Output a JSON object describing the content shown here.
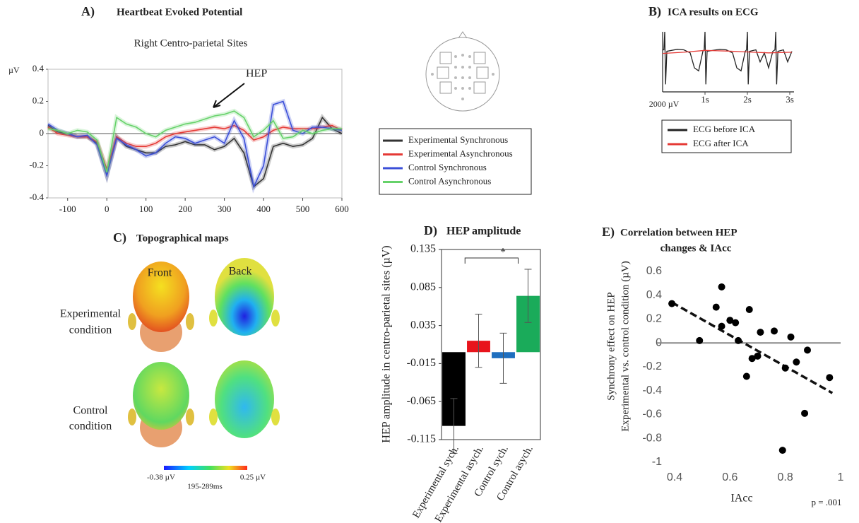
{
  "chart_data": [
    {
      "type": "line",
      "label": "A)",
      "title": "Heartbeat Evoked Potential",
      "subtitle": "Right Centro-parietal Sites",
      "y_unit": "µV",
      "annotation": "HEP",
      "x": [
        -150,
        -125,
        -100,
        -75,
        -50,
        -25,
        0,
        25,
        50,
        75,
        100,
        125,
        150,
        175,
        200,
        225,
        250,
        275,
        300,
        325,
        350,
        375,
        400,
        425,
        450,
        475,
        500,
        525,
        550,
        575,
        600
      ],
      "xlim": [
        -150,
        600
      ],
      "xticks": [
        -100,
        0,
        100,
        200,
        300,
        400,
        500,
        600
      ],
      "ylim": [
        -0.4,
        0.4
      ],
      "yticks": [
        -0.4,
        -0.2,
        0,
        0.2,
        0.4
      ],
      "series": [
        {
          "name": "Experimental Synchronous",
          "color": "#333333",
          "values": [
            0.05,
            0.01,
            0,
            -0.02,
            -0.02,
            -0.06,
            -0.26,
            -0.02,
            -0.08,
            -0.1,
            -0.12,
            -0.12,
            -0.08,
            -0.07,
            -0.05,
            -0.07,
            -0.07,
            -0.1,
            -0.08,
            -0.03,
            -0.12,
            -0.33,
            -0.28,
            -0.08,
            -0.06,
            -0.08,
            -0.07,
            -0.03,
            0.1,
            0.03,
            0
          ]
        },
        {
          "name": "Experimental Asynchronous",
          "color": "#e53935",
          "values": [
            0.04,
            0,
            -0.01,
            -0.02,
            -0.02,
            -0.05,
            -0.22,
            -0.02,
            -0.06,
            -0.08,
            -0.08,
            -0.06,
            -0.02,
            0,
            0.01,
            0.02,
            0.03,
            0.04,
            0.03,
            0.05,
            0.02,
            -0.04,
            -0.02,
            0.02,
            0.04,
            0.03,
            0.03,
            0.03,
            0.04,
            0.05,
            0.02
          ]
        },
        {
          "name": "Control Synchronous",
          "color": "#3b4fd8",
          "values": [
            0.06,
            0.02,
            0,
            -0.02,
            -0.01,
            -0.07,
            -0.26,
            -0.03,
            -0.07,
            -0.1,
            -0.14,
            -0.12,
            -0.06,
            -0.02,
            -0.03,
            -0.06,
            -0.04,
            -0.02,
            -0.06,
            0.08,
            -0.03,
            -0.33,
            -0.2,
            0.18,
            0.2,
            0.02,
            0,
            0.04,
            0.04,
            0.03,
            0.02
          ]
        },
        {
          "name": "Control Asynchronous",
          "color": "#66d26a",
          "values": [
            0.03,
            0.02,
            0,
            0.02,
            0.01,
            -0.04,
            -0.24,
            0.1,
            0.06,
            0.04,
            0,
            -0.02,
            0.02,
            0.04,
            0.06,
            0.07,
            0.09,
            0.11,
            0.12,
            0.14,
            0.1,
            -0.02,
            0.02,
            0.08,
            -0.03,
            -0.02,
            0.02,
            0,
            0.02,
            0.03,
            0.03
          ]
        }
      ]
    },
    {
      "type": "line",
      "label": "B)",
      "title": "ICA results on ECG",
      "scale_label": "2000 µV",
      "xlim": [
        0,
        3.1
      ],
      "xticks": [
        {
          "value": 1,
          "label": "1s"
        },
        {
          "value": 2,
          "label": "2s"
        },
        {
          "value": 3,
          "label": "3s"
        }
      ],
      "ylim": [
        0,
        2000
      ],
      "series": [
        {
          "name": "ECG before ICA",
          "color": "#222222",
          "x": [
            0,
            0.03,
            0.05,
            0.07,
            0.1,
            0.35,
            0.5,
            0.65,
            0.75,
            0.85,
            0.95,
            0.98,
            1,
            1.02,
            1.05,
            1.35,
            1.5,
            1.65,
            1.75,
            1.85,
            1.95,
            1.98,
            2,
            2.02,
            2.05,
            2.2,
            2.3,
            2.4,
            2.5,
            2.6,
            2.65,
            2.67,
            2.69,
            2.72,
            2.85,
            2.95,
            3.05
          ],
          "values": [
            1400,
            1400,
            2000,
            250,
            1350,
            1420,
            1400,
            1300,
            800,
            700,
            1350,
            1400,
            2000,
            250,
            1350,
            1420,
            1400,
            1300,
            800,
            700,
            1350,
            1400,
            2000,
            250,
            1350,
            1400,
            1000,
            1300,
            800,
            1350,
            1400,
            2000,
            250,
            1350,
            1400,
            1000,
            1350
          ]
        },
        {
          "name": "ECG after ICA",
          "color": "#e53935",
          "x": [
            0,
            0.5,
            1,
            1.5,
            2,
            2.5,
            3.05
          ],
          "values": [
            1280,
            1320,
            1380,
            1360,
            1330,
            1300,
            1320
          ]
        }
      ]
    },
    {
      "type": "bar",
      "label": "D)",
      "title": "HEP amplitude",
      "ylabel": "HEP amplitude in  centro-parietal sites (µV)",
      "categories": [
        "Experimental  sych.",
        "Experimental  asych.",
        "Control  sych.",
        "Control asych."
      ],
      "values": [
        -0.097,
        0.015,
        -0.008,
        0.074
      ],
      "errors": [
        0.036,
        0.035,
        0.033,
        0.035
      ],
      "colors": [
        "#000000",
        "#e8141c",
        "#1f6fbf",
        "#1aab5a"
      ],
      "ylim": [
        -0.115,
        0.135
      ],
      "yticks": [
        -0.115,
        -0.065,
        -0.015,
        0.035,
        0.085,
        0.135
      ],
      "significance": "*"
    },
    {
      "type": "scatter",
      "label": "E)",
      "title": [
        "Correlation between HEP",
        "changes & IAcc"
      ],
      "ylabel": [
        "Synchrony effect on HEP",
        "Experimental vs. control condition (µV)"
      ],
      "xlabel": "IAcc",
      "annotation": "p = .001",
      "x": [
        0.39,
        0.49,
        0.55,
        0.57,
        0.57,
        0.6,
        0.62,
        0.63,
        0.67,
        0.66,
        0.68,
        0.7,
        0.71,
        0.76,
        0.8,
        0.82,
        0.84,
        0.88,
        0.87,
        0.79,
        0.96
      ],
      "values": [
        0.33,
        0.02,
        0.3,
        0.47,
        0.14,
        0.19,
        0.17,
        0.02,
        0.28,
        -0.28,
        -0.13,
        -0.11,
        0.09,
        0.1,
        -0.21,
        0.05,
        -0.16,
        -0.06,
        -0.59,
        -0.9,
        -0.29
      ],
      "color": "#000000",
      "trend": {
        "x": [
          0.39,
          0.97
        ],
        "values": [
          0.34,
          -0.42
        ]
      },
      "xlim": [
        0.4,
        1
      ],
      "xticks": [
        0.4,
        0.6,
        0.8,
        1
      ],
      "ylim": [
        -1,
        0.6
      ],
      "yticks": [
        -1,
        -0.8,
        -0.6,
        -0.4,
        -0.2,
        0,
        0.2,
        0.4,
        0.6
      ]
    }
  ],
  "topo_maps": {
    "label": "C)",
    "title": "Topographical maps",
    "columns": [
      "Front",
      "Back"
    ],
    "rows": [
      [
        "Experimental",
        "condition"
      ],
      [
        "Control",
        "condition"
      ]
    ],
    "scale_min": "-0.38 µV",
    "scale_max": "0.25 µV",
    "window": "195-289ms"
  }
}
